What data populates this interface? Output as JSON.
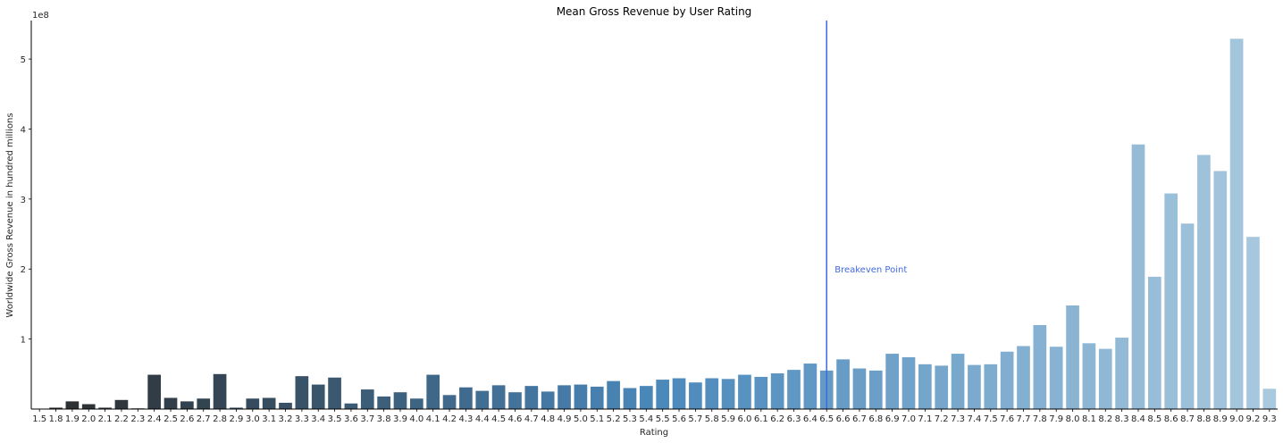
{
  "chart_data": {
    "type": "bar",
    "title": "Mean Gross Revenue by User Rating",
    "xlabel": "Rating",
    "ylabel": "Worldwide Gross Revenue in hundred millions",
    "y_offset_label": "1e8",
    "y_scale": 100000000,
    "ylim": [
      0,
      555000000
    ],
    "yticks": [
      100000000,
      200000000,
      300000000,
      400000000,
      500000000
    ],
    "ytick_labels": [
      "1",
      "2",
      "3",
      "4",
      "5"
    ],
    "grid": false,
    "categories": [
      "1.5",
      "1.8",
      "1.9",
      "2.0",
      "2.1",
      "2.2",
      "2.3",
      "2.4",
      "2.5",
      "2.6",
      "2.7",
      "2.8",
      "2.9",
      "3.0",
      "3.1",
      "3.2",
      "3.3",
      "3.4",
      "3.5",
      "3.6",
      "3.7",
      "3.8",
      "3.9",
      "4.0",
      "4.1",
      "4.2",
      "4.3",
      "4.4",
      "4.5",
      "4.6",
      "4.7",
      "4.8",
      "4.9",
      "5.0",
      "5.1",
      "5.2",
      "5.3",
      "5.4",
      "5.5",
      "5.6",
      "5.7",
      "5.8",
      "5.9",
      "6.0",
      "6.1",
      "6.2",
      "6.3",
      "6.4",
      "6.5",
      "6.6",
      "6.7",
      "6.8",
      "6.9",
      "7.0",
      "7.1",
      "7.2",
      "7.3",
      "7.4",
      "7.5",
      "7.6",
      "7.7",
      "7.8",
      "7.9",
      "8.0",
      "8.1",
      "8.2",
      "8.3",
      "8.4",
      "8.5",
      "8.6",
      "8.7",
      "8.8",
      "8.9",
      "9.0",
      "9.2",
      "9.3"
    ],
    "values": [
      0,
      2000000,
      11000000,
      7000000,
      2000000,
      13000000,
      1000000,
      49000000,
      16000000,
      11000000,
      15000000,
      50000000,
      2000000,
      15000000,
      16000000,
      9000000,
      47000000,
      35000000,
      45000000,
      8000000,
      28000000,
      18000000,
      24000000,
      15000000,
      49000000,
      20000000,
      31000000,
      26000000,
      34000000,
      24000000,
      33000000,
      25000000,
      34000000,
      35000000,
      32000000,
      40000000,
      30000000,
      33000000,
      42000000,
      44000000,
      38000000,
      44000000,
      43000000,
      49000000,
      46000000,
      51000000,
      56000000,
      65000000,
      55000000,
      71000000,
      58000000,
      55000000,
      79000000,
      74000000,
      64000000,
      62000000,
      79000000,
      63000000,
      64000000,
      82000000,
      90000000,
      120000000,
      89000000,
      148000000,
      94000000,
      86000000,
      102000000,
      378000000,
      189000000,
      308000000,
      265000000,
      363000000,
      340000000,
      529000000,
      246000000,
      29000000
    ],
    "palette": {
      "start": "#2b2b2b",
      "mid": "#4a88bb",
      "end": "#a9c9df"
    },
    "annotations": [
      {
        "type": "vline",
        "x_category": "6.5",
        "color": "#4169e1"
      },
      {
        "type": "text",
        "text": "Breakeven Point",
        "x_category": "6.5",
        "y": 200000000,
        "color": "#4169e1"
      }
    ]
  }
}
